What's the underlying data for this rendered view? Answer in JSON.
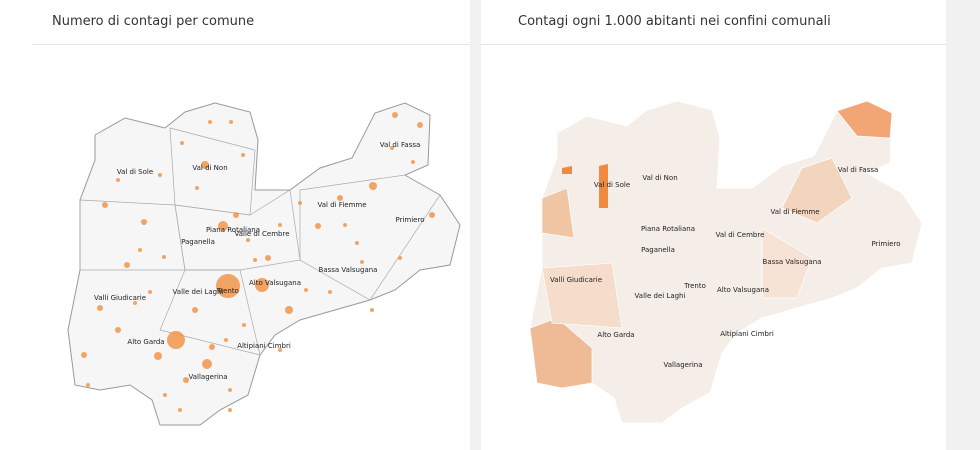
{
  "left": {
    "title": "Numero di contagi per comune",
    "labels": [
      "Val di Sole",
      "Val di Non",
      "Val di Fassa",
      "Val di Fiemme",
      "Primiero",
      "Piana Rotaliana",
      "Valle di Cembre",
      "Paganella",
      "Valli Giudicarie",
      "Valle dei Laghi",
      "Trento",
      "Alto Valsugana",
      "Bassa Valsugana",
      "Alto Garda",
      "Altipiani Cimbri",
      "Vallagerina"
    ]
  },
  "right": {
    "title": "Contagi ogni 1.000 abitanti nei confini comunali",
    "labels": [
      "Val di Sole",
      "Val di Non",
      "Val di Fassa",
      "Val di Fiemme",
      "Primiero",
      "Piana Rotaliana",
      "Val di Cembre",
      "Paganella",
      "Valli Giudicarie",
      "Valle dei Laghi",
      "Trento",
      "Alto Valsugana",
      "Bassa Valsugana",
      "Alto Garda",
      "Altipiani Cimbri",
      "Vallagerina"
    ]
  }
}
